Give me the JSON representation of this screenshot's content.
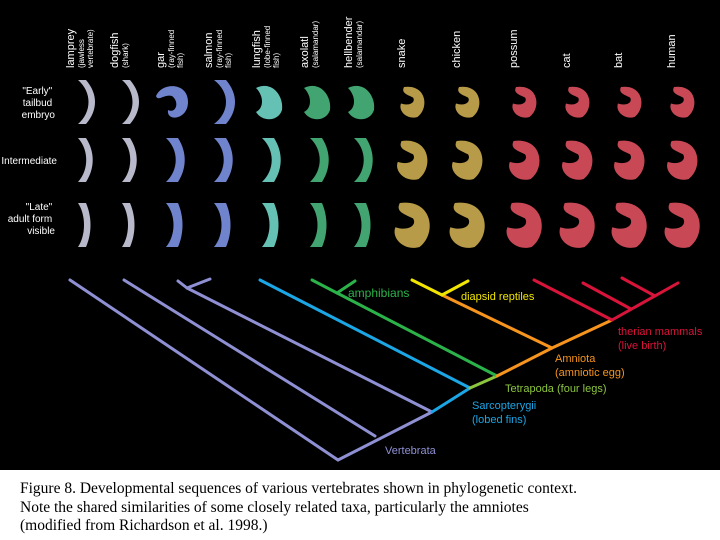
{
  "colors": {
    "background": "#000000",
    "vertebrata": "#8f90d4",
    "sarcopterygii": "#1ba6e6",
    "tetrapoda": "#8cc63f",
    "amniota": "#f7941d",
    "amphibians": "#2bb34a",
    "diapsid": "#f2e600",
    "therian": "#d9143a",
    "embryo_fish": "#7a8fe0",
    "embryo_lamprey": "#c9c9dd",
    "embryo_lungfish": "#6fd1c4",
    "embryo_amphibian": "#48b27a",
    "embryo_reptile": "#c8a84e",
    "embryo_mammal": "#d94f5c"
  },
  "stages": [
    {
      "lines": [
        "\"Early\"",
        "tailbud",
        "embryo"
      ]
    },
    {
      "lines": [
        "Intermediate"
      ]
    },
    {
      "lines": [
        "\"Late\"",
        "adult form",
        "visible"
      ]
    }
  ],
  "taxa": [
    {
      "name": "lamprey",
      "sub": [
        "(jawless",
        "vertebrate)"
      ],
      "color_key": "embryo_lamprey"
    },
    {
      "name": "dogfish",
      "sub": [
        "(shark)"
      ],
      "color_key": "embryo_lamprey"
    },
    {
      "name": "gar",
      "sub": [
        "(ray-finned",
        "fish)"
      ],
      "color_key": "embryo_fish"
    },
    {
      "name": "salmon",
      "sub": [
        "(ray-finned",
        "fish)"
      ],
      "color_key": "embryo_fish"
    },
    {
      "name": "lungfish",
      "sub": [
        "(lobe-finned",
        "fish)"
      ],
      "color_key": "embryo_lungfish"
    },
    {
      "name": "axolatl",
      "sub": [
        "(salamandar)"
      ],
      "color_key": "embryo_amphibian"
    },
    {
      "name": "hellbender",
      "sub": [
        "(salamandar)"
      ],
      "color_key": "embryo_amphibian"
    },
    {
      "name": "snake",
      "sub": [],
      "color_key": "embryo_reptile"
    },
    {
      "name": "chicken",
      "sub": [],
      "color_key": "embryo_reptile"
    },
    {
      "name": "possum",
      "sub": [],
      "color_key": "embryo_mammal"
    },
    {
      "name": "cat",
      "sub": [],
      "color_key": "embryo_mammal"
    },
    {
      "name": "bat",
      "sub": [],
      "color_key": "embryo_mammal"
    },
    {
      "name": "human",
      "sub": [],
      "color_key": "embryo_mammal"
    }
  ],
  "clades": {
    "amphibians": "amphibians",
    "diapsid": "diapsid reptiles",
    "therian": [
      "therian mammals",
      "(live birth)"
    ],
    "amniota": [
      "Amniota",
      "(amniotic egg)"
    ],
    "tetrapoda": "Tetrapoda (four legs)",
    "sarcopterygii": [
      "Sarcopterygii",
      "(lobed fins)"
    ],
    "vertebrata": "Vertebrata"
  },
  "caption": [
    "Figure 8. Developmental sequences of various vertebrates shown in phylogenetic context.",
    "Note the shared similarities of some closely related taxa, particularly the amniotes",
    "(modified from Richardson et al. 1998.)"
  ]
}
